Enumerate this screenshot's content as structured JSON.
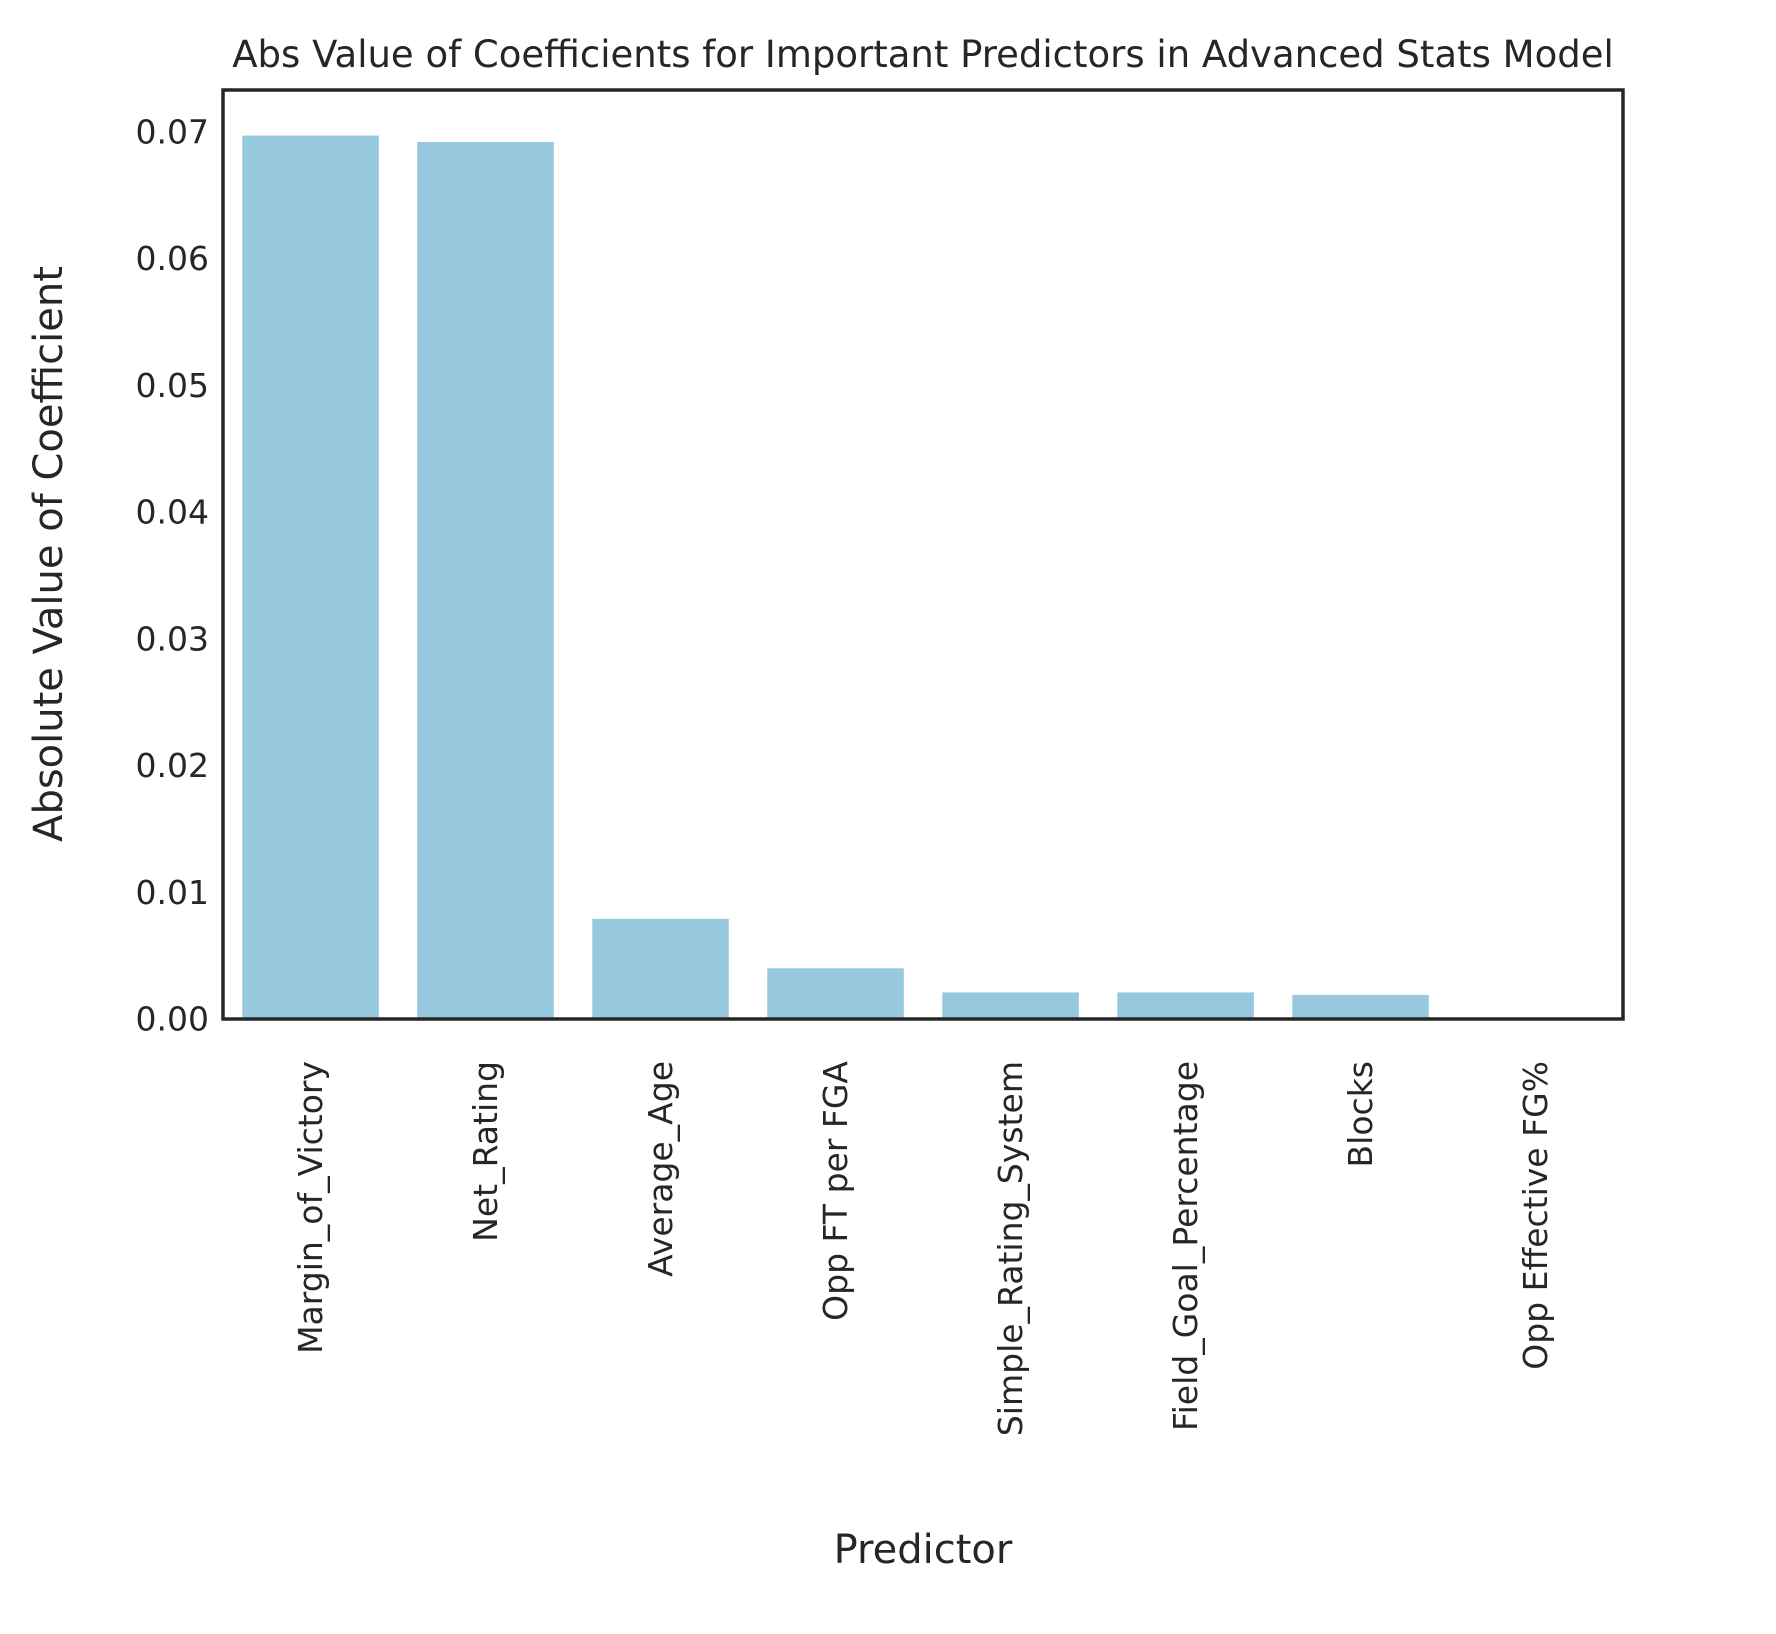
{
  "chart_data": {
    "type": "bar",
    "title": "Abs Value of Coefficients for Important Predictors in Advanced Stats Model",
    "xlabel": "Predictor",
    "ylabel": "Absolute Value of Coefficient",
    "categories": [
      "Margin_of_Victory",
      "Net_Rating",
      "Average_Age",
      "Opp FT per FGA",
      "Simple_Rating_System",
      "Field_Goal_Percentage",
      "Blocks",
      "Opp Effective FG%"
    ],
    "values": [
      0.0697,
      0.0692,
      0.0079,
      0.004,
      0.0021,
      0.0021,
      0.0019,
      0.0
    ],
    "ylim": [
      0,
      0.0733
    ],
    "yticks": [
      "0.00",
      "0.01",
      "0.02",
      "0.03",
      "0.04",
      "0.05",
      "0.06",
      "0.07"
    ],
    "ytick_values": [
      0,
      0.01,
      0.02,
      0.03,
      0.04,
      0.05,
      0.06,
      0.07
    ],
    "grid": false,
    "bar_color": "#96C8DE",
    "axis_color": "#262626"
  }
}
